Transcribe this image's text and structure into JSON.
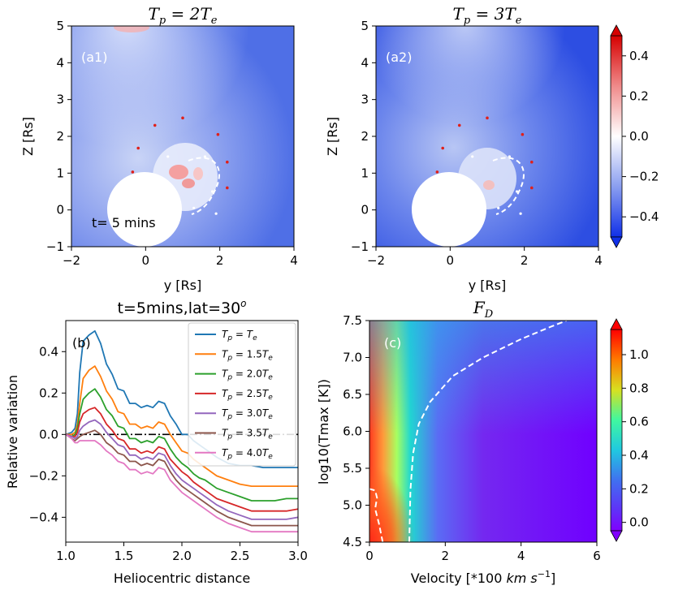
{
  "colors": {
    "series": [
      "#1f77b4",
      "#ff7f0e",
      "#2ca02c",
      "#d62728",
      "#9467bd",
      "#8c564b",
      "#e377c2"
    ]
  },
  "chart_data": [
    {
      "id": "a1",
      "type": "heatmap",
      "title": "T_p = 2T_e",
      "title_display": "Tp = 2Te",
      "panel_label": "(a1)",
      "annotation": "t= 5 mins",
      "xlabel": "y [Rs]",
      "ylabel": "Z [Rs]",
      "xlim": [
        -2,
        4
      ],
      "ylim": [
        -1,
        5
      ],
      "xticks": [
        "−2",
        "0",
        "2",
        "4"
      ],
      "yticks": [
        "−1",
        "0",
        "1",
        "2",
        "3",
        "4",
        "5"
      ],
      "red_dots": [
        [
          -0.35,
          1.03
        ],
        [
          -0.2,
          1.68
        ],
        [
          0.25,
          2.3
        ],
        [
          1.0,
          2.5
        ],
        [
          1.95,
          2.05
        ],
        [
          2.2,
          1.3
        ],
        [
          2.2,
          0.6
        ]
      ],
      "white_dots": [
        [
          0.6,
          1.45
        ],
        [
          1.6,
          1.45
        ],
        [
          1.8,
          0.5
        ],
        [
          1.3,
          0.05
        ],
        [
          1.9,
          -0.1
        ]
      ]
    },
    {
      "id": "a2",
      "type": "heatmap",
      "title": "T_p = 3T_e",
      "title_display": "Tp = 3Te",
      "panel_label": "(a2)",
      "xlabel": "y [Rs]",
      "ylabel": "Z [Rs]",
      "xlim": [
        -2,
        4
      ],
      "ylim": [
        -1,
        5
      ],
      "xticks": [
        "−2",
        "0",
        "2",
        "4"
      ],
      "yticks": [
        "−1",
        "0",
        "1",
        "2",
        "3",
        "4",
        "5"
      ],
      "red_dots": [
        [
          -0.35,
          1.03
        ],
        [
          -0.2,
          1.68
        ],
        [
          0.25,
          2.3
        ],
        [
          1.0,
          2.5
        ],
        [
          1.95,
          2.05
        ],
        [
          2.2,
          1.3
        ],
        [
          2.2,
          0.6
        ]
      ],
      "white_dots": [
        [
          0.6,
          1.45
        ],
        [
          1.6,
          1.45
        ],
        [
          1.8,
          0.5
        ],
        [
          1.3,
          0.05
        ],
        [
          1.9,
          -0.1
        ]
      ]
    },
    {
      "id": "colorbar-a",
      "type": "colorbar",
      "range": [
        -0.5,
        0.5
      ],
      "ticks": [
        0.4,
        0.2,
        0.0,
        -0.2,
        -0.4
      ],
      "tick_labels": [
        "0.4",
        "0.2",
        "0.0",
        "−0.2",
        "−0.4"
      ]
    },
    {
      "id": "b",
      "type": "line",
      "title": "t=5mins,lat=30^o",
      "title_display": "t=5mins,lat=30o",
      "panel_label": "(b)",
      "xlabel": "Heliocentric distance",
      "ylabel": "Relative variation",
      "xlim": [
        1.0,
        3.0
      ],
      "ylim": [
        -0.52,
        0.55
      ],
      "xticks": [
        "1.0",
        "1.5",
        "2.0",
        "2.5",
        "3.0"
      ],
      "yticks": [
        "0.4",
        "0.2",
        "0.0",
        "−0.2",
        "−0.4"
      ],
      "x": [
        1.0,
        1.05,
        1.08,
        1.1,
        1.12,
        1.15,
        1.2,
        1.25,
        1.3,
        1.35,
        1.4,
        1.45,
        1.5,
        1.55,
        1.6,
        1.65,
        1.7,
        1.75,
        1.8,
        1.85,
        1.9,
        1.95,
        2.0,
        2.05,
        2.1,
        2.15,
        2.2,
        2.3,
        2.4,
        2.5,
        2.6,
        2.7,
        2.8,
        2.9,
        3.0
      ],
      "series": [
        {
          "name": "T_p = T_e",
          "legend": "Tp = Te",
          "values": [
            0.0,
            0.01,
            0.03,
            0.1,
            0.3,
            0.45,
            0.48,
            0.5,
            0.44,
            0.34,
            0.29,
            0.22,
            0.21,
            0.15,
            0.15,
            0.13,
            0.14,
            0.13,
            0.16,
            0.15,
            0.09,
            0.05,
            0.0,
            0.0,
            -0.03,
            -0.05,
            -0.07,
            -0.11,
            -0.14,
            -0.15,
            -0.15,
            -0.16,
            -0.16,
            -0.16,
            -0.16
          ]
        },
        {
          "name": "T_p = 1.5T_e",
          "legend": "Tp = 1.5Te",
          "values": [
            0.0,
            0.0,
            0.01,
            0.05,
            0.15,
            0.27,
            0.31,
            0.33,
            0.28,
            0.21,
            0.17,
            0.11,
            0.1,
            0.05,
            0.05,
            0.03,
            0.04,
            0.03,
            0.06,
            0.05,
            0.0,
            -0.04,
            -0.08,
            -0.09,
            -0.12,
            -0.14,
            -0.16,
            -0.2,
            -0.22,
            -0.24,
            -0.25,
            -0.25,
            -0.25,
            -0.25,
            -0.25
          ]
        },
        {
          "name": "T_p = 2.0T_e",
          "legend": "Tp = 2.0Te",
          "values": [
            0.0,
            -0.01,
            0.0,
            0.03,
            0.1,
            0.17,
            0.2,
            0.22,
            0.18,
            0.12,
            0.09,
            0.04,
            0.03,
            -0.02,
            -0.02,
            -0.04,
            -0.03,
            -0.04,
            -0.01,
            -0.02,
            -0.07,
            -0.11,
            -0.14,
            -0.16,
            -0.19,
            -0.21,
            -0.22,
            -0.26,
            -0.28,
            -0.3,
            -0.32,
            -0.32,
            -0.32,
            -0.31,
            -0.31
          ]
        },
        {
          "name": "T_p = 2.5T_e",
          "legend": "Tp = 2.5Te",
          "values": [
            0.0,
            -0.01,
            -0.01,
            0.01,
            0.06,
            0.1,
            0.12,
            0.13,
            0.1,
            0.05,
            0.02,
            -0.02,
            -0.03,
            -0.07,
            -0.07,
            -0.09,
            -0.08,
            -0.09,
            -0.06,
            -0.07,
            -0.12,
            -0.15,
            -0.18,
            -0.2,
            -0.23,
            -0.25,
            -0.27,
            -0.31,
            -0.33,
            -0.35,
            -0.37,
            -0.37,
            -0.37,
            -0.37,
            -0.36
          ]
        },
        {
          "name": "T_p = 3.0T_e",
          "legend": "Tp = 3.0Te",
          "values": [
            0.0,
            -0.01,
            -0.02,
            -0.01,
            0.02,
            0.04,
            0.06,
            0.07,
            0.05,
            0.01,
            -0.02,
            -0.05,
            -0.06,
            -0.1,
            -0.1,
            -0.12,
            -0.11,
            -0.12,
            -0.09,
            -0.1,
            -0.15,
            -0.19,
            -0.22,
            -0.24,
            -0.26,
            -0.28,
            -0.3,
            -0.34,
            -0.37,
            -0.39,
            -0.41,
            -0.41,
            -0.41,
            -0.41,
            -0.4
          ]
        },
        {
          "name": "T_p = 3.5T_e",
          "legend": "Tp = 3.5Te",
          "values": [
            0.0,
            -0.02,
            -0.03,
            -0.02,
            -0.01,
            0.0,
            0.01,
            0.02,
            0.0,
            -0.04,
            -0.06,
            -0.09,
            -0.1,
            -0.13,
            -0.13,
            -0.15,
            -0.14,
            -0.15,
            -0.12,
            -0.13,
            -0.18,
            -0.22,
            -0.25,
            -0.27,
            -0.29,
            -0.31,
            -0.33,
            -0.37,
            -0.4,
            -0.42,
            -0.44,
            -0.44,
            -0.44,
            -0.44,
            -0.44
          ]
        },
        {
          "name": "T_p = 4.0T_e",
          "legend": "Tp = 4.0Te",
          "values": [
            0.0,
            -0.02,
            -0.04,
            -0.04,
            -0.03,
            -0.03,
            -0.03,
            -0.03,
            -0.05,
            -0.08,
            -0.1,
            -0.13,
            -0.14,
            -0.17,
            -0.17,
            -0.19,
            -0.18,
            -0.19,
            -0.16,
            -0.17,
            -0.22,
            -0.25,
            -0.28,
            -0.3,
            -0.32,
            -0.34,
            -0.36,
            -0.4,
            -0.43,
            -0.45,
            -0.47,
            -0.47,
            -0.47,
            -0.47,
            -0.47
          ]
        }
      ],
      "reference_line": {
        "y": 0.0,
        "style": "dash-dot",
        "color": "#000000"
      }
    },
    {
      "id": "c",
      "type": "heatmap",
      "title": "F_D",
      "title_display": "FD",
      "panel_label": "(c)",
      "xlabel": "Velocity [*100 km s^-1]",
      "xlabel_display": "Velocity [*100 km s−1]",
      "ylabel": "log10(Tmax [K])",
      "xlim": [
        0,
        6
      ],
      "ylim": [
        4.5,
        7.5
      ],
      "xticks": [
        "0",
        "2",
        "4",
        "6"
      ],
      "yticks": [
        "7.5",
        "7.0",
        "6.5",
        "6.0",
        "5.5",
        "5.0",
        "4.5"
      ],
      "contour_right": [
        [
          1.05,
          4.5
        ],
        [
          1.08,
          5.2
        ],
        [
          1.15,
          5.7
        ],
        [
          1.3,
          6.1
        ],
        [
          1.6,
          6.4
        ],
        [
          2.2,
          6.75
        ],
        [
          3.0,
          7.0
        ],
        [
          4.0,
          7.25
        ],
        [
          4.8,
          7.42
        ],
        [
          5.2,
          7.5
        ]
      ],
      "contour_left": [
        [
          0.35,
          4.5
        ],
        [
          0.25,
          4.75
        ],
        [
          0.15,
          4.95
        ],
        [
          0.2,
          5.1
        ],
        [
          0.15,
          5.2
        ],
        [
          0.0,
          5.22
        ]
      ]
    },
    {
      "id": "colorbar-c",
      "type": "colorbar",
      "range": [
        -0.05,
        1.15
      ],
      "ticks": [
        1.0,
        0.8,
        0.6,
        0.4,
        0.2,
        0.0
      ],
      "tick_labels": [
        "1.0",
        "0.8",
        "0.6",
        "0.4",
        "0.2",
        "0.0"
      ]
    }
  ]
}
